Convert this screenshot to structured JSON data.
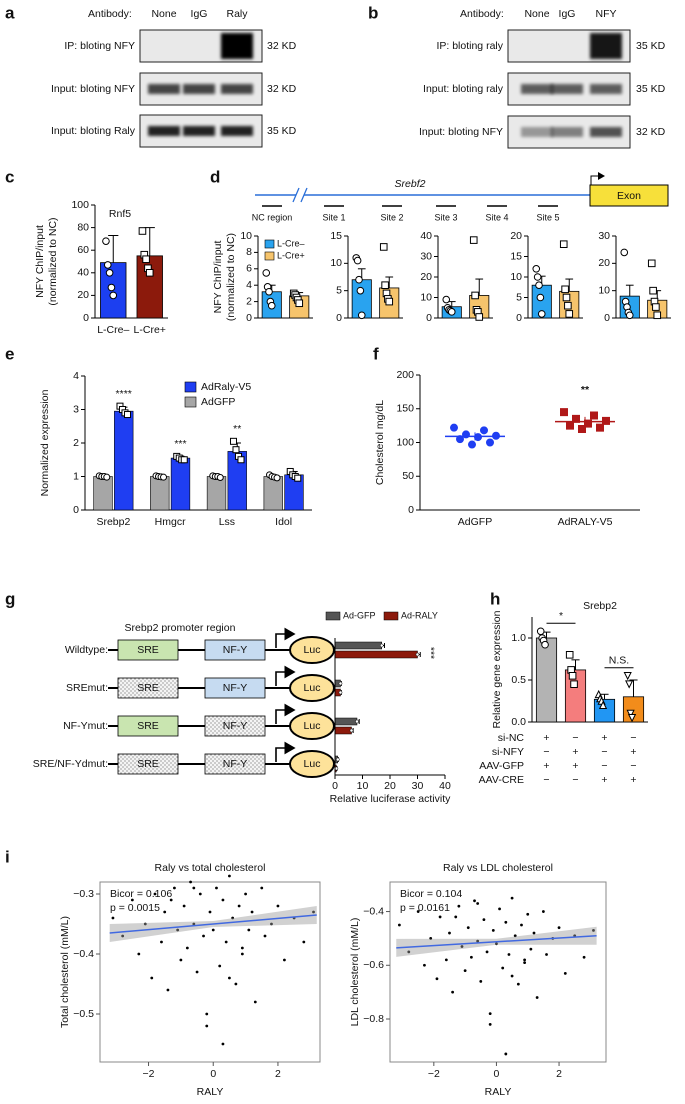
{
  "blots": [
    {
      "panel": "a",
      "antibody": "Antibody:",
      "lanes": [
        "None",
        "IgG",
        "Raly"
      ],
      "rows": [
        {
          "label": "IP: bloting NFY",
          "size": "32 KD"
        },
        {
          "label": "Input: bloting NFY",
          "size": "32 KD"
        },
        {
          "label": "Input: bloting Raly",
          "size": "35 KD"
        }
      ]
    },
    {
      "panel": "b",
      "antibody": "Antibody:",
      "lanes": [
        "None",
        "IgG",
        "NFY"
      ],
      "rows": [
        {
          "label": "IP: bloting raly",
          "size": "35 KD"
        },
        {
          "label": "Input: bloting raly",
          "size": "35 KD"
        },
        {
          "label": "Input: bloting NFY",
          "size": "32 KD"
        }
      ]
    }
  ],
  "chart_data": [
    {
      "panel": "c",
      "type": "bar",
      "title": "Rnf5",
      "ylabel": [
        "NFY ChIP/input",
        "(normalized to NC)"
      ],
      "categories": [
        "L-Cre–",
        "L-Cre+"
      ],
      "values": [
        49,
        55
      ],
      "errors": [
        24,
        25
      ],
      "colors": [
        "#1c3ff0",
        "#8c1a0c"
      ],
      "point_shapes": [
        "circle",
        "square"
      ],
      "points": [
        [
          68,
          47,
          40,
          27,
          20
        ],
        [
          77,
          56,
          52,
          44,
          40
        ]
      ],
      "ylim": [
        0,
        100
      ],
      "yticks": [
        0,
        20,
        40,
        60,
        80,
        100
      ]
    },
    {
      "panel": "d",
      "type": "bar-panels",
      "gene": "Srebf2",
      "exon": "Exon",
      "regions": [
        "NC region",
        "Site 1",
        "Site 2",
        "Site 3",
        "Site 4",
        "Site 5"
      ],
      "ylabel": [
        "NFY ChIP/input",
        "(normalized to NC)"
      ],
      "series": [
        {
          "name": "L-Cre–",
          "color": "#29a3ef"
        },
        {
          "name": "L-Cre+",
          "color": "#f6c46c"
        }
      ],
      "point_shapes": [
        "circle",
        "square"
      ],
      "panels": [
        {
          "values": [
            3.2,
            2.7
          ],
          "errors": [
            0.8,
            0.4
          ],
          "points": [
            [
              5.5,
              3.8,
              3.2,
              2.0,
              1.5
            ],
            [
              3.0,
              2.8,
              2.5,
              2.2,
              1.8
            ]
          ],
          "ylim": [
            0,
            10
          ],
          "yticks": [
            0,
            2,
            4,
            6,
            8,
            10
          ]
        },
        {
          "values": [
            7,
            5.5
          ],
          "errors": [
            2,
            2
          ],
          "points": [
            [
              11,
              10.5,
              7,
              5,
              0.5
            ],
            [
              13,
              6,
              4.5,
              3.5,
              3
            ]
          ],
          "ylim": [
            0,
            15
          ],
          "yticks": [
            0,
            5,
            10,
            15
          ]
        },
        {
          "values": [
            5.5,
            11
          ],
          "errors": [
            2.5,
            8
          ],
          "points": [
            [
              9,
              5,
              4,
              3.5,
              3
            ],
            [
              38,
              11,
              4,
              3,
              0.5
            ]
          ],
          "ylim": [
            0,
            40
          ],
          "yticks": [
            0,
            10,
            20,
            30,
            40
          ]
        },
        {
          "values": [
            8,
            6.5
          ],
          "errors": [
            2.2,
            3
          ],
          "points": [
            [
              12,
              10,
              8,
              5,
              1
            ],
            [
              18,
              7,
              5,
              3,
              1
            ]
          ],
          "ylim": [
            0,
            20
          ],
          "yticks": [
            0,
            5,
            10,
            15,
            20
          ]
        },
        {
          "values": [
            8,
            6.5
          ],
          "errors": [
            4,
            3.5
          ],
          "points": [
            [
              24,
              6,
              4,
              2,
              1
            ],
            [
              20,
              10,
              6,
              4,
              1
            ]
          ],
          "ylim": [
            0,
            30
          ],
          "yticks": [
            0,
            10,
            20,
            30
          ]
        }
      ]
    },
    {
      "panel": "e",
      "type": "grouped-bar",
      "ylabel": "Normalized expression",
      "categories": [
        "Srebp2",
        "Hmgcr",
        "Lss",
        "Idol"
      ],
      "series": [
        {
          "name": "AdRaly-V5",
          "color": "#1f3ef2",
          "values": [
            2.95,
            1.55,
            1.75,
            1.05
          ],
          "errors": [
            0.12,
            0.06,
            0.25,
            0.1
          ],
          "points": [
            [
              3.1,
              3.0,
              2.9,
              2.85
            ],
            [
              1.6,
              1.55,
              1.5,
              1.5
            ],
            [
              2.05,
              1.8,
              1.6,
              1.5
            ],
            [
              1.15,
              1.05,
              1.0,
              0.95
            ]
          ]
        },
        {
          "name": "AdGFP",
          "color": "#a6a6a6",
          "values": [
            1,
            1,
            1,
            1
          ],
          "errors": [
            0.03,
            0.03,
            0.03,
            0.05
          ],
          "points": [
            [
              1.02,
              1.0,
              1.0,
              0.98
            ],
            [
              1.02,
              1.0,
              0.99,
              0.98
            ],
            [
              1.02,
              1.0,
              1.0,
              0.97
            ],
            [
              1.05,
              1.0,
              0.98,
              0.96
            ]
          ]
        }
      ],
      "annotations": [
        "****",
        "***",
        "**"
      ],
      "ylim": [
        0,
        4
      ],
      "yticks": [
        0,
        1,
        2,
        3,
        4
      ]
    },
    {
      "panel": "f",
      "type": "dot",
      "ylabel": "Cholesterol mg/dL",
      "categories": [
        "AdGFP",
        "AdRALY-V5"
      ],
      "colors": [
        "#1f3ef2",
        "#b01818"
      ],
      "point_shapes": [
        "circle",
        "square"
      ],
      "values": [
        109,
        131
      ],
      "errors": [
        6,
        7
      ],
      "points": [
        [
          122,
          118,
          112,
          110,
          108,
          105,
          100,
          97
        ],
        [
          145,
          140,
          135,
          132,
          128,
          125,
          122,
          120
        ]
      ],
      "annotation": "**",
      "ylim": [
        0,
        200
      ],
      "yticks": [
        0,
        50,
        100,
        150,
        200
      ]
    },
    {
      "panel": "g",
      "type": "horizontal-bar",
      "title": "Srebp2 promoter region",
      "categories": [
        "Wildtype:",
        "SREmut:",
        "NF-Ymut:",
        "SRE/NF-Ydmut:"
      ],
      "elements": [
        [
          "SRE",
          "NF-Y",
          "Luc"
        ],
        [
          "SRE",
          "NF-Y",
          "Luc"
        ],
        [
          "SRE",
          "NF-Y",
          "Luc"
        ],
        [
          "SRE",
          "NF-Y",
          "Luc"
        ]
      ],
      "mutated": [
        [
          false,
          false
        ],
        [
          true,
          false
        ],
        [
          false,
          true
        ],
        [
          true,
          true
        ]
      ],
      "series": [
        {
          "name": "Ad-GFP",
          "color": "#555555",
          "values": [
            17,
            2,
            8,
            1
          ],
          "errors": [
            1,
            0.3,
            0.8,
            0.2
          ]
        },
        {
          "name": "Ad-RALY",
          "color": "#8c1a0c",
          "values": [
            30,
            2,
            6,
            0.5
          ],
          "errors": [
            1,
            0.3,
            0.6,
            0.2
          ]
        }
      ],
      "annotation": "***",
      "xlabel": "Relative luciferase activity",
      "xlim": [
        0,
        40
      ],
      "xticks": [
        0,
        10,
        20,
        30,
        40
      ]
    },
    {
      "panel": "h",
      "type": "bar",
      "title": "Srebp2",
      "title_color": "#a31a1a",
      "ylabel": "Relative gene expression",
      "values": [
        1.0,
        0.62,
        0.27,
        0.3
      ],
      "errors": [
        0.07,
        0.12,
        0.06,
        0.2
      ],
      "colors": [
        "#b3b3b3",
        "#f47d7d",
        "#2196f3",
        "#f28c1b"
      ],
      "point_shapes": [
        "circle",
        "square",
        "triangle",
        "triangle-down"
      ],
      "points": [
        [
          1.08,
          1.0,
          0.97,
          0.92
        ],
        [
          0.8,
          0.62,
          0.55,
          0.45
        ],
        [
          0.33,
          0.28,
          0.25,
          0.2
        ],
        [
          0.55,
          0.45,
          0.1,
          0.05
        ]
      ],
      "comparisons": [
        "*",
        "N.S."
      ],
      "conditions": {
        "rows": [
          "si-NC",
          "si-NFY",
          "AAV-GFP",
          "AAV-CRE"
        ],
        "values": [
          [
            "+",
            "−",
            "+",
            "−"
          ],
          [
            "−",
            "+",
            "−",
            "+"
          ],
          [
            "+",
            "+",
            "−",
            "−"
          ],
          [
            "−",
            "−",
            "+",
            "+"
          ]
        ]
      },
      "ylim": [
        0,
        1.25
      ],
      "yticks": [
        {
          "value": 0,
          "label": "0.0"
        },
        0.5,
        {
          "value": 1,
          "label": "1.0"
        }
      ]
    },
    {
      "panel": "i",
      "type": "scatter",
      "title": "Raly vs total cholesterol",
      "xlabel": "RALY",
      "ylabel": "Total cholesterol (mM/L)",
      "annotations": [
        "Bicor = 0.106",
        "p = 0.0015"
      ],
      "annotation_colors": [
        "#000000",
        "#a31a1a"
      ],
      "x": [
        -3.1,
        -2.8,
        -2.5,
        -2.3,
        -2.1,
        -1.9,
        -1.8,
        -1.6,
        -1.5,
        -1.4,
        -1.2,
        -1.1,
        -1.0,
        -0.9,
        -0.8,
        -0.7,
        -0.6,
        -0.5,
        -0.4,
        -0.3,
        -0.2,
        -0.1,
        0.0,
        0.1,
        0.2,
        0.3,
        0.4,
        0.5,
        0.6,
        0.7,
        0.8,
        0.9,
        1.0,
        1.1,
        1.2,
        1.3,
        1.5,
        1.6,
        1.8,
        2.0,
        2.2,
        2.5,
        2.8,
        3.1,
        -0.2,
        0.3,
        -0.6,
        0.5,
        -1.3,
        0.9
      ],
      "values": [
        -0.34,
        -0.37,
        -0.31,
        -0.4,
        -0.35,
        -0.44,
        -0.3,
        -0.38,
        -0.33,
        -0.46,
        -0.29,
        -0.36,
        -0.41,
        -0.32,
        -0.39,
        -0.28,
        -0.35,
        -0.43,
        -0.3,
        -0.37,
        -0.5,
        -0.33,
        -0.36,
        -0.29,
        -0.42,
        -0.31,
        -0.38,
        -0.27,
        -0.34,
        -0.45,
        -0.32,
        -0.4,
        -0.3,
        -0.36,
        -0.33,
        -0.48,
        -0.29,
        -0.37,
        -0.35,
        -0.32,
        -0.41,
        -0.34,
        -0.38,
        -0.33,
        -0.52,
        -0.55,
        -0.29,
        -0.44,
        -0.31,
        -0.39
      ],
      "fit": {
        "x": [
          -3.2,
          3.2
        ],
        "values": [
          -0.365,
          -0.335
        ]
      },
      "xlim": [
        -3.5,
        3.3
      ],
      "xticks": [
        {
          "value": -2,
          "label": "−2"
        },
        0,
        2
      ],
      "ylim": [
        -0.58,
        -0.28
      ],
      "yticks": [
        {
          "value": -0.5,
          "label": "−0.5"
        },
        {
          "value": -0.4,
          "label": "−0.4"
        },
        {
          "value": -0.3,
          "label": "−0.3"
        }
      ]
    },
    {
      "type": "scatter",
      "title": "Raly vs LDL cholesterol",
      "xlabel": "RALY",
      "ylabel": "LDL cholesterol (mM/L)",
      "annotations": [
        "Bicor = 0.104",
        "p = 0.0161"
      ],
      "annotation_colors": [
        "#000000",
        "#a31a1a"
      ],
      "x": [
        -3.1,
        -2.8,
        -2.5,
        -2.3,
        -2.1,
        -1.9,
        -1.8,
        -1.6,
        -1.5,
        -1.4,
        -1.2,
        -1.1,
        -1.0,
        -0.9,
        -0.8,
        -0.7,
        -0.6,
        -0.5,
        -0.4,
        -0.3,
        -0.2,
        -0.1,
        0.0,
        0.1,
        0.2,
        0.3,
        0.4,
        0.5,
        0.6,
        0.7,
        0.8,
        0.9,
        1.0,
        1.1,
        1.2,
        1.3,
        1.5,
        1.6,
        1.8,
        2.0,
        2.2,
        2.5,
        2.8,
        3.1,
        -0.2,
        0.3,
        -0.6,
        0.5,
        -1.3,
        0.9
      ],
      "values": [
        -0.45,
        -0.55,
        -0.4,
        -0.6,
        -0.5,
        -0.65,
        -0.42,
        -0.58,
        -0.48,
        -0.7,
        -0.38,
        -0.53,
        -0.62,
        -0.46,
        -0.57,
        -0.36,
        -0.51,
        -0.66,
        -0.43,
        -0.55,
        -0.78,
        -0.47,
        -0.52,
        -0.39,
        -0.61,
        -0.44,
        -0.56,
        -0.35,
        -0.49,
        -0.67,
        -0.45,
        -0.59,
        -0.41,
        -0.54,
        -0.48,
        -0.72,
        -0.4,
        -0.56,
        -0.5,
        -0.46,
        -0.63,
        -0.49,
        -0.57,
        -0.47,
        -0.82,
        -0.93,
        -0.37,
        -0.64,
        -0.42,
        -0.58
      ],
      "fit": {
        "x": [
          -3.2,
          3.2
        ],
        "values": [
          -0.535,
          -0.49
        ]
      },
      "xlim": [
        -3.4,
        3.5
      ],
      "xticks": [
        {
          "value": -2,
          "label": "−2"
        },
        0,
        2
      ],
      "ylim": [
        -0.96,
        -0.29
      ],
      "yticks": [
        {
          "value": -0.8,
          "label": "−0.8"
        },
        {
          "value": -0.6,
          "label": "−0.6"
        },
        {
          "value": -0.4,
          "label": "−0.4"
        }
      ]
    }
  ]
}
